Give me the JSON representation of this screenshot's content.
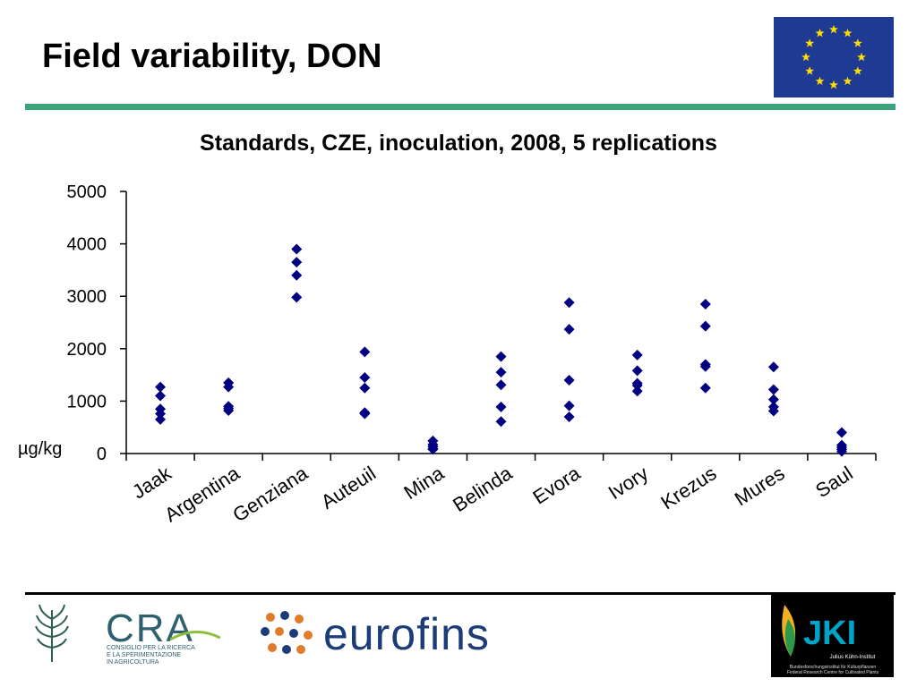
{
  "slide": {
    "title": "Field variability, DON"
  },
  "logos": {
    "cra_name": "CRA",
    "cra_subtitle_lines": [
      "CONSIGLIO PER LA RICERCA",
      "E LA SPERIMENTAZIONE",
      "IN AGRICOLTURA"
    ],
    "eurofins_name": "eurofins",
    "jki_letters": "JKI",
    "jki_name": "Julius Kühn-Institut",
    "jki_subtitle_lines": [
      "Bundesforschungsinstitut für Kulturpflanzen",
      "Federal Research Centre for Cultivated Plants"
    ]
  },
  "colors": {
    "marker": "#000080",
    "accent_rule": "#3aa37a",
    "eu_blue": "#1f3a93",
    "eu_star": "#ffdd00"
  },
  "chart_data": {
    "type": "scatter",
    "title": "Standards, CZE, inoculation, 2008, 5 replications",
    "ylabel": "µg/kg",
    "xlabel": "",
    "ylim": [
      0,
      5000
    ],
    "yticks": [
      0,
      1000,
      2000,
      3000,
      4000,
      5000
    ],
    "categories": [
      "Jaak",
      "Argentina",
      "Genziana",
      "Auteuil",
      "Mina",
      "Belinda",
      "Evora",
      "Ivory",
      "Krezus",
      "Mures",
      "Saul"
    ],
    "series": [
      {
        "values": [
          [
            1270,
            1100,
            850,
            760,
            650
          ],
          [
            1350,
            1270,
            900,
            860,
            820
          ],
          [
            3900,
            3650,
            3400,
            2980
          ],
          [
            1940,
            1450,
            1250,
            780,
            760
          ],
          [
            240,
            170,
            130,
            90,
            80
          ],
          [
            1850,
            1550,
            1310,
            890,
            610
          ],
          [
            2880,
            2370,
            1400,
            910,
            700
          ],
          [
            1880,
            1580,
            1340,
            1300,
            1190
          ],
          [
            2850,
            2430,
            1700,
            1660,
            1250
          ],
          [
            1650,
            1220,
            1030,
            890,
            810
          ],
          [
            400,
            160,
            120,
            80,
            40
          ]
        ]
      }
    ],
    "grid": false,
    "legend": "none"
  }
}
